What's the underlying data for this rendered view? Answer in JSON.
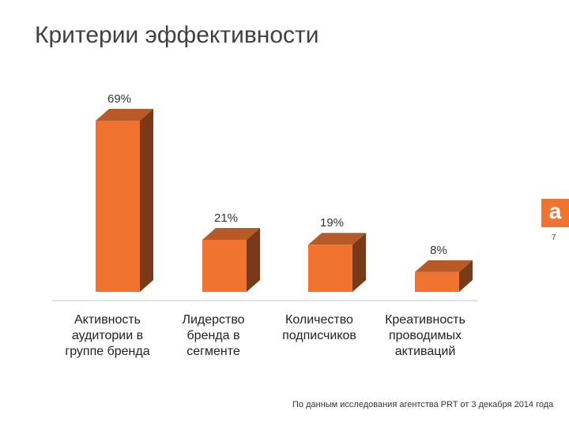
{
  "slide": {
    "title": "Критерии эффективности",
    "page_number": "7",
    "source_note": "По данным исследования агентства PRT от 3 декабря 2014 года",
    "brand_glyph": "a"
  },
  "colors": {
    "bar_front": "#f07430",
    "bar_top": "#b85a28",
    "bar_side": "#7a3a1a",
    "accent": "#f07430"
  },
  "chart_data": {
    "type": "bar",
    "style": "3d",
    "categories": [
      "Активность аудитории в группе бренда",
      "Лидерство бренда в сегменте",
      "Количество подписчиков",
      "Креативность проводимых активаций"
    ],
    "category_lines": [
      [
        "Активность",
        "аудитории в",
        "группе бренда"
      ],
      [
        "Лидерство",
        "бренда в",
        "сегменте"
      ],
      [
        "Количество",
        "подписчиков"
      ],
      [
        "Креативность",
        "проводимых",
        "активаций"
      ]
    ],
    "values": [
      69,
      21,
      19,
      8
    ],
    "data_labels": [
      "69%",
      "21%",
      "19%",
      "8%"
    ],
    "unit": "%",
    "ylim": [
      0,
      69
    ],
    "grid": false,
    "legend": false
  }
}
